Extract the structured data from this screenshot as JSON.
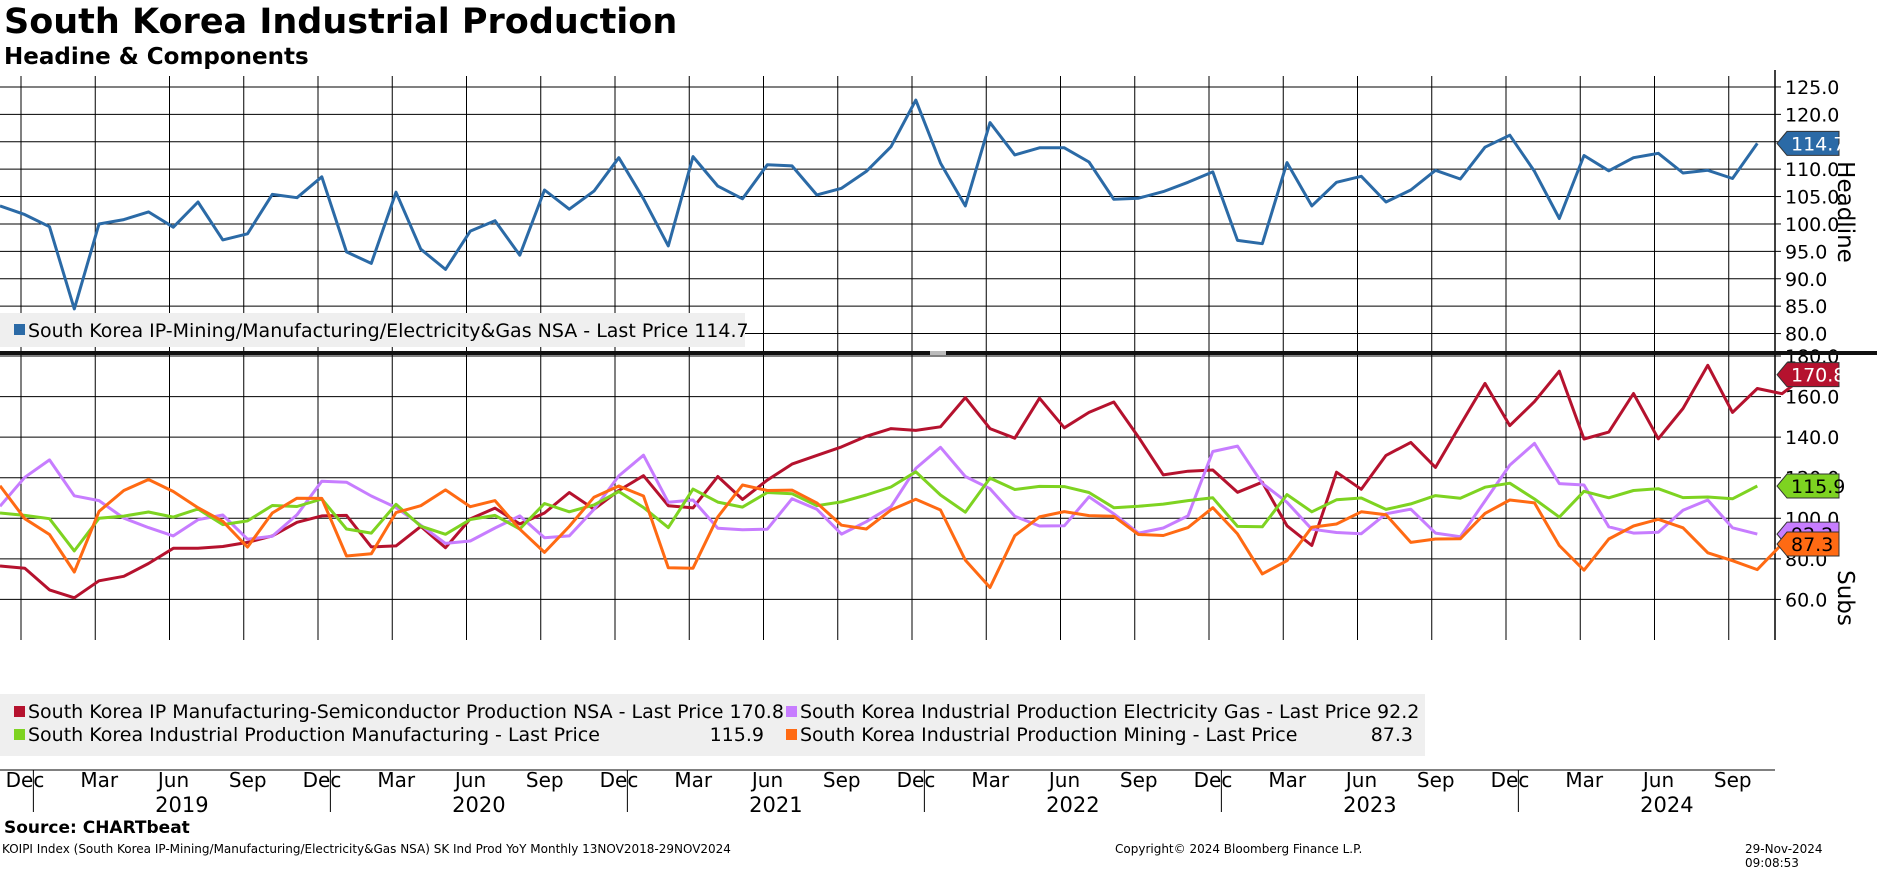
{
  "header": {
    "title": "South Korea Industrial Production",
    "subtitle": "Headine & Components"
  },
  "footer": {
    "source": "Source: CHARTbeat",
    "ticker_line": "KOIPI Index (South Korea IP-Mining/Manufacturing/Electricity&Gas NSA) SK Ind Prod YoY  Monthly 13NOV2018-29NOV2024",
    "copyright": "Copyright© 2024 Bloomberg Finance L.P.",
    "timestamp": "29-Nov-2024 09:08:53"
  },
  "colors": {
    "headline": "#2b6aa6",
    "semiconductor": "#b5122e",
    "electricity_gas": "#c77dff",
    "manufacturing": "#7ed321",
    "mining": "#ff6a13",
    "grid": "#000000"
  },
  "chart_data": [
    {
      "type": "line",
      "panel": "top",
      "axis_title": "Headline",
      "ylim": [
        77,
        127
      ],
      "yticks": [
        "125.0",
        "120.0",
        "115.0",
        "110.0",
        "105.0",
        "100.0",
        "95.0",
        "90.0",
        "85.0",
        "80.0"
      ],
      "ytick_values": [
        125,
        120,
        115,
        110,
        105,
        100,
        95,
        90,
        85,
        80
      ],
      "series": [
        {
          "name": "South Korea IP-Mining/Manufacturing/Electricity&Gas NSA - Last Price 114.7",
          "last_label": "114.7",
          "color": "#2b6aa6",
          "values": [
            103.3,
            101.7,
            99.5,
            84.5,
            100.0,
            100.8,
            102.2,
            99.4,
            104.0,
            97.1,
            98.2,
            105.4,
            104.8,
            108.6,
            94.9,
            92.8,
            105.8,
            95.4,
            91.7,
            98.7,
            100.6,
            94.3,
            106.2,
            102.7,
            106.0,
            112.1,
            104.6,
            96.0,
            112.3,
            106.9,
            104.6,
            110.8,
            110.6,
            105.3,
            106.5,
            109.6,
            114.1,
            122.6,
            111.1,
            103.3,
            118.5,
            112.6,
            113.9,
            113.9,
            111.3,
            104.5,
            104.7,
            105.9,
            107.6,
            109.5,
            97.0,
            96.4,
            111.2,
            103.3,
            107.6,
            108.7,
            104.0,
            106.2,
            109.8,
            108.2,
            114.0,
            116.2,
            109.6,
            101.0,
            112.5,
            109.7,
            112.1,
            112.9,
            109.3,
            109.8,
            108.3,
            114.7
          ]
        }
      ]
    },
    {
      "type": "line",
      "panel": "bottom",
      "axis_title": "Subs",
      "ylim": [
        40,
        180
      ],
      "yticks": [
        "180.0",
        "160.0",
        "140.0",
        "120.0",
        "100.0",
        "80.0",
        "60.0"
      ],
      "ytick_values": [
        180,
        160,
        140,
        120,
        100,
        80,
        60
      ],
      "series": [
        {
          "name": "South Korea IP Manufacturing-Semiconductor Production NSA - Last Price 170.8",
          "last_label": "170.8",
          "color": "#b5122e",
          "values": [
            76.5,
            75.4,
            64.7,
            60.8,
            69.2,
            71.4,
            77.7,
            85.2,
            85.2,
            86.1,
            88.1,
            91.3,
            98.0,
            101.2,
            101.4,
            85.9,
            86.4,
            96.0,
            85.5,
            99.7,
            105.0,
            97.2,
            102.6,
            112.7,
            104.5,
            113.7,
            121.0,
            106.2,
            105.1,
            120.6,
            109.3,
            118.8,
            126.7,
            131.0,
            135.2,
            140.4,
            144.2,
            143.3,
            145.1,
            159.5,
            144.2,
            139.5,
            159.2,
            144.6,
            152.2,
            157.3,
            140.0,
            121.4,
            123.2,
            123.8,
            112.8,
            117.8,
            96.3,
            86.6,
            122.7,
            114.3,
            131.0,
            137.4,
            125.1,
            146.0,
            166.5,
            145.7,
            157.5,
            172.5,
            139.1,
            142.5,
            161.5,
            139.2,
            154.1,
            175.4,
            152.2,
            164.0,
            161.4,
            170.8
          ]
        },
        {
          "name": "South Korea Industrial Production Electricity Gas - Last Price 92.2",
          "last_label": "92.2",
          "color": "#c77dff",
          "values": [
            105.9,
            120.2,
            128.8,
            111.1,
            108.7,
            100.1,
            95.4,
            91.3,
            99.3,
            101.6,
            89.7,
            91.1,
            101.7,
            118.3,
            117.8,
            111.0,
            105.3,
            96.6,
            87.6,
            88.8,
            95.2,
            101.2,
            90.4,
            91.3,
            104.4,
            120.9,
            131.1,
            107.9,
            109.0,
            95.1,
            94.3,
            94.6,
            109.6,
            104.5,
            92.2,
            98.3,
            105.7,
            124.6,
            135.0,
            120.6,
            114.6,
            101.0,
            96.2,
            96.3,
            110.6,
            102.2,
            92.7,
            95.2,
            101.2,
            132.9,
            135.6,
            117.2,
            107.9,
            94.6,
            93.0,
            92.4,
            102.2,
            104.5,
            92.7,
            90.9,
            108.5,
            126.2,
            136.9,
            117.1,
            116.4,
            95.8,
            92.7,
            93.1,
            104.0,
            109.0,
            95.3,
            92.2
          ]
        },
        {
          "name": "South Korea Industrial Production Manufacturing - Last Price",
          "last_label": "115.9",
          "legend_value": "115.9",
          "color": "#7ed321",
          "values": [
            102.6,
            101.4,
            99.8,
            83.9,
            100.0,
            101.1,
            103.1,
            100.6,
            104.6,
            96.9,
            98.7,
            106.3,
            105.8,
            109.5,
            94.7,
            92.7,
            106.9,
            96.1,
            92.1,
            99.4,
            101.4,
            94.7,
            107.3,
            103.2,
            106.6,
            113.2,
            105.3,
            95.4,
            114.4,
            108.0,
            105.5,
            112.7,
            112.1,
            106.2,
            108.1,
            111.5,
            115.4,
            122.9,
            111.5,
            103.0,
            119.8,
            114.2,
            115.7,
            115.6,
            112.7,
            105.2,
            105.9,
            107.0,
            108.7,
            110.1,
            96.0,
            95.8,
            111.7,
            103.2,
            109.1,
            110.0,
            104.4,
            107.1,
            111.2,
            109.9,
            115.3,
            117.3,
            109.5,
            100.6,
            113.3,
            110.1,
            113.7,
            114.6,
            110.2,
            110.5,
            109.6,
            115.9
          ]
        },
        {
          "name": "South Korea Industrial Production Mining - Last Price",
          "last_label": "87.3",
          "legend_value": "87.3",
          "color": "#ff6a13",
          "values": [
            116.0,
            99.8,
            92.0,
            73.5,
            103.4,
            113.7,
            119.1,
            113.2,
            105.2,
            98.5,
            85.8,
            102.6,
            109.9,
            109.8,
            81.4,
            82.5,
            102.8,
            106.2,
            114.0,
            105.7,
            108.7,
            94.6,
            83.2,
            96.0,
            110.4,
            115.9,
            111.0,
            75.6,
            75.4,
            100.7,
            116.4,
            113.7,
            113.9,
            107.6,
            96.6,
            94.7,
            104.1,
            109.4,
            104.1,
            79.4,
            65.9,
            91.4,
            100.7,
            103.3,
            101.3,
            101.0,
            92.0,
            91.5,
            95.4,
            105.2,
            92.3,
            72.6,
            79.1,
            95.6,
            97.2,
            103.2,
            101.7,
            88.1,
            89.8,
            89.9,
            102.4,
            109.0,
            107.6,
            86.6,
            74.4,
            89.8,
            96.2,
            99.5,
            95.3,
            83.0,
            79.1,
            74.7,
            87.3
          ]
        }
      ]
    }
  ],
  "x_axis": {
    "month_labels": [
      "Dec",
      "Mar",
      "Jun",
      "Sep",
      "Dec",
      "Mar",
      "Jun",
      "Sep",
      "Dec",
      "Mar",
      "Jun",
      "Sep",
      "Dec",
      "Mar",
      "Jun",
      "Sep",
      "Dec",
      "Mar",
      "Jun",
      "Sep",
      "Dec",
      "Mar",
      "Jun",
      "Sep"
    ],
    "year_labels": [
      "2019",
      "2020",
      "2021",
      "2022",
      "2023",
      "2024"
    ]
  }
}
